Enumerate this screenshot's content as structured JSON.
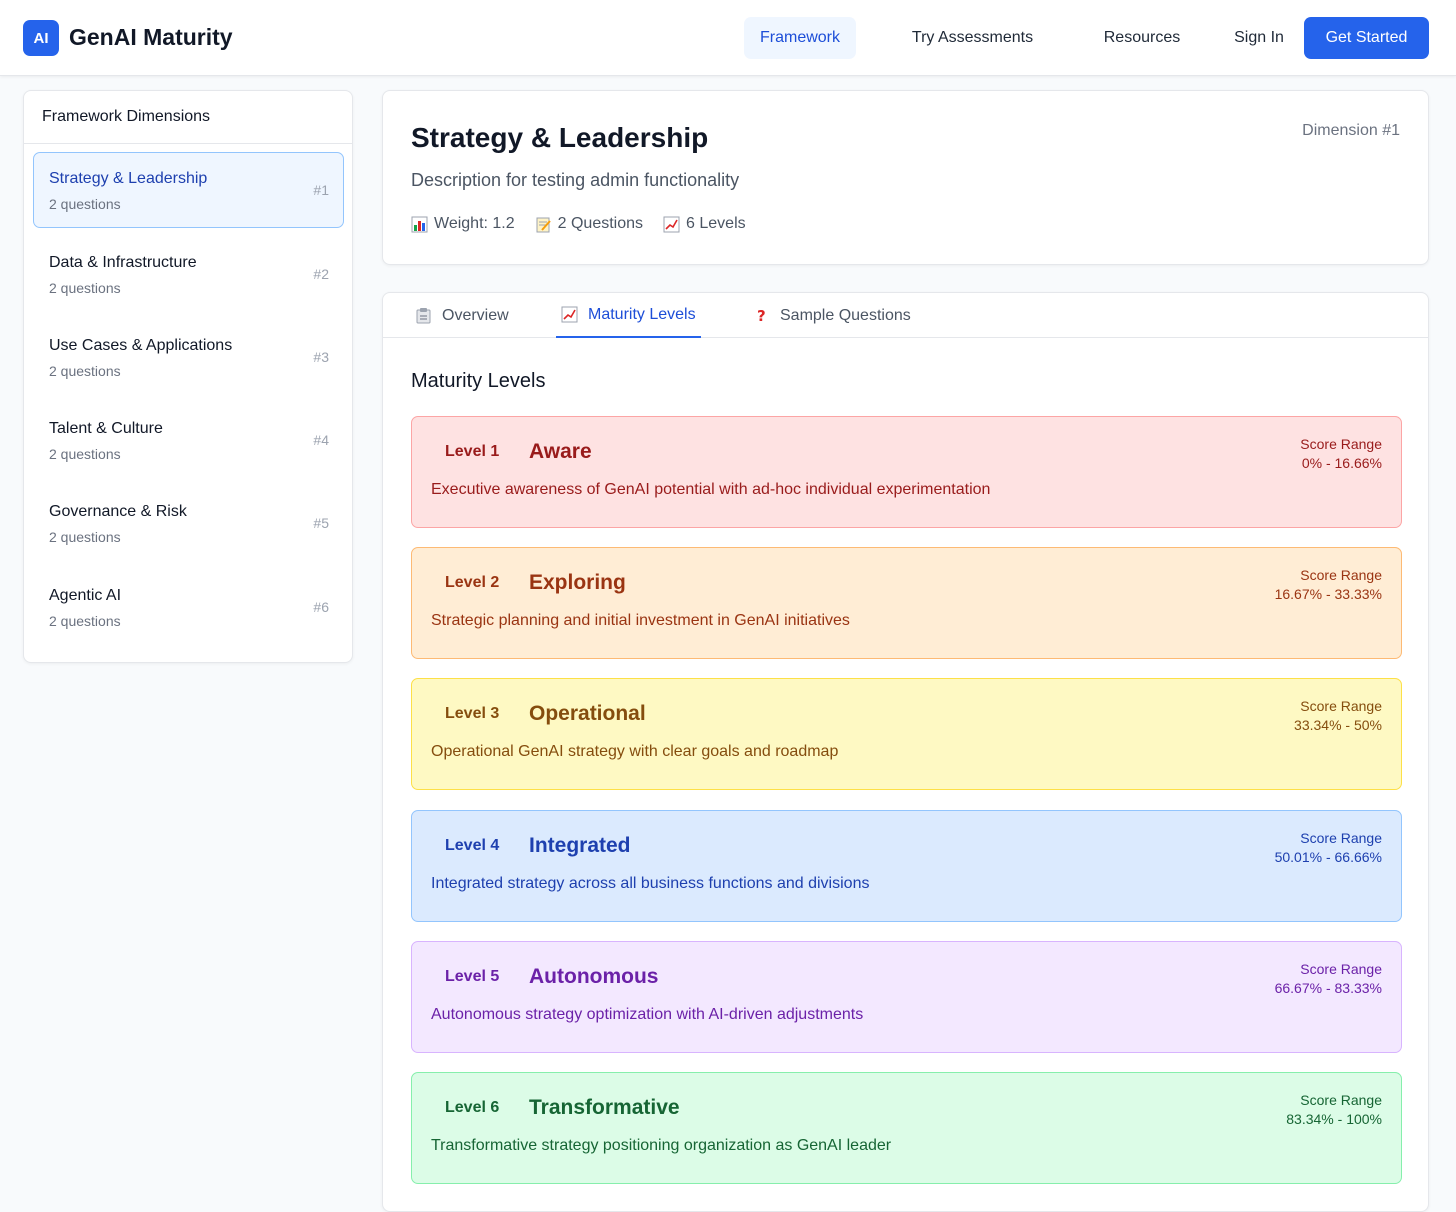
{
  "header": {
    "logo": "AI",
    "brand": "GenAI Maturity",
    "nav": [
      "Framework",
      "Try Assessments",
      "Resources",
      "Sign In"
    ],
    "cta": "Get Started"
  },
  "sidebar": {
    "title": "Framework Dimensions",
    "items": [
      {
        "name": "Strategy & Leadership",
        "sub": "2 questions",
        "num": "#1"
      },
      {
        "name": "Data & Infrastructure",
        "sub": "2 questions",
        "num": "#2"
      },
      {
        "name": "Use Cases & Applications",
        "sub": "2 questions",
        "num": "#3"
      },
      {
        "name": "Talent & Culture",
        "sub": "2 questions",
        "num": "#4"
      },
      {
        "name": "Governance & Risk",
        "sub": "2 questions",
        "num": "#5"
      },
      {
        "name": "Agentic AI",
        "sub": "2 questions",
        "num": "#6"
      }
    ]
  },
  "dimension": {
    "title": "Strategy & Leadership",
    "badge": "Dimension #1",
    "description": "Description for testing admin functionality",
    "weight": "Weight: 1.2",
    "questions": "2 Questions",
    "levels": "6 Levels"
  },
  "tabs": [
    {
      "label": "Overview",
      "icon": "clipboard-icon"
    },
    {
      "label": "Maturity Levels",
      "icon": "chart-icon"
    },
    {
      "label": "Sample Questions",
      "icon": "question-icon"
    }
  ],
  "section_title": "Maturity Levels",
  "score_range_label": "Score Range",
  "levels": [
    {
      "label": "Level 1",
      "name": "Aware",
      "description": "Executive awareness of GenAI potential with ad-hoc individual experimentation",
      "range": "0% - 16.66%",
      "bg": "#fee2e2",
      "border": "#fca5a5",
      "color": "#991b1b"
    },
    {
      "label": "Level 2",
      "name": "Exploring",
      "description": "Strategic planning and initial investment in GenAI initiatives",
      "range": "16.67% - 33.33%",
      "bg": "#ffedd5",
      "border": "#fdba74",
      "color": "#9a3412"
    },
    {
      "label": "Level 3",
      "name": "Operational",
      "description": "Operational GenAI strategy with clear goals and roadmap",
      "range": "33.34% - 50%",
      "bg": "#fef9c3",
      "border": "#fde047",
      "color": "#854d0e"
    },
    {
      "label": "Level 4",
      "name": "Integrated",
      "description": "Integrated strategy across all business functions and divisions",
      "range": "50.01% - 66.66%",
      "bg": "#dbeafe",
      "border": "#93c5fd",
      "color": "#1e40af"
    },
    {
      "label": "Level 5",
      "name": "Autonomous",
      "description": "Autonomous strategy optimization with AI-driven adjustments",
      "range": "66.67% - 83.33%",
      "bg": "#f3e8ff",
      "border": "#d8b4fe",
      "color": "#6b21a8"
    },
    {
      "label": "Level 6",
      "name": "Transformative",
      "description": "Transformative strategy positioning organization as GenAI leader",
      "range": "83.34% - 100%",
      "bg": "#dcfce7",
      "border": "#86efac",
      "color": "#166534"
    }
  ]
}
